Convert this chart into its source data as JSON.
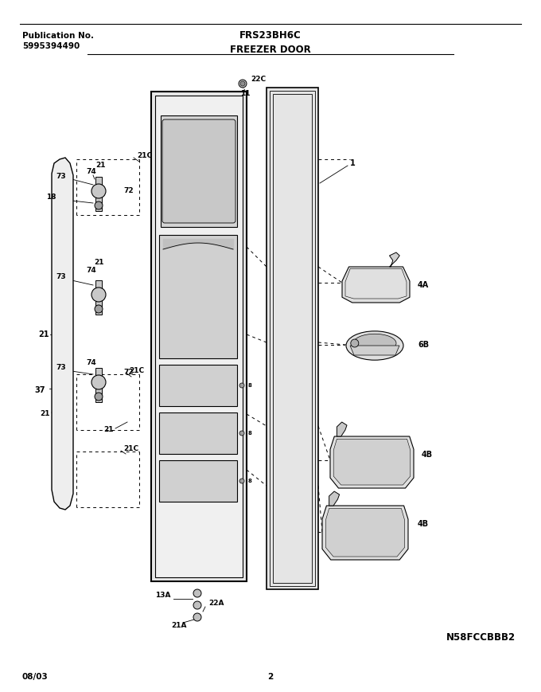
{
  "title_model": "FRS23BH6C",
  "title_section": "FREEZER DOOR",
  "pub_no_label": "Publication No.",
  "pub_no_value": "5995394490",
  "date_code": "08/03",
  "page_num": "2",
  "diagram_id": "N58FCCBBB2",
  "bg_color": "#ffffff",
  "line_color": "#000000",
  "gray_fill": "#d8d8d8",
  "light_gray": "#eeeeee",
  "mid_gray": "#c8c8c8"
}
